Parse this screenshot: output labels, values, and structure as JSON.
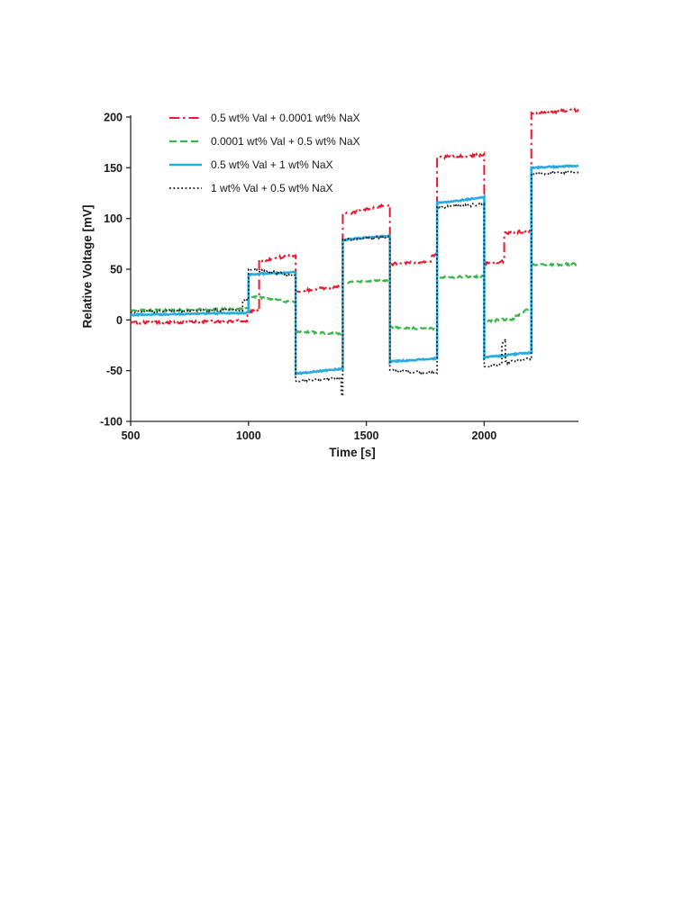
{
  "chart_data": {
    "type": "line",
    "title": "",
    "xlabel": "Time [s]",
    "ylabel": "Relative Voltage [mV]",
    "xlim": [
      500,
      2400
    ],
    "ylim": [
      -100,
      200
    ],
    "xticks": [
      500,
      1000,
      1500,
      2000
    ],
    "yticks": [
      -100,
      -50,
      0,
      50,
      100,
      150,
      200
    ],
    "grid": false,
    "legend_position": "top-left-inside",
    "axis_color": "#262626",
    "series": [
      {
        "name": "0.5 wt% Val + 0.0001 wt% NaX",
        "color": "#e8192c",
        "style": "dashdot",
        "width": 2,
        "noise": 1.4,
        "segments": [
          [
            500,
            995,
            -3,
            -1
          ],
          [
            995,
            1045,
            8,
            10
          ],
          [
            1045,
            1200,
            58,
            64
          ],
          [
            1200,
            1400,
            28,
            33
          ],
          [
            1400,
            1600,
            104,
            114
          ],
          [
            1600,
            1775,
            55,
            58
          ],
          [
            1775,
            1800,
            62,
            65
          ],
          [
            1800,
            2000,
            160,
            163
          ],
          [
            2000,
            2085,
            56,
            58
          ],
          [
            2085,
            2200,
            85,
            88
          ],
          [
            2200,
            2400,
            204,
            207
          ]
        ]
      },
      {
        "name": "0.0001 wt% Val + 0.5 wt% NaX",
        "color": "#3cb54a",
        "style": "dashed",
        "width": 2.2,
        "noise": 1.1,
        "segments": [
          [
            500,
            1000,
            9,
            11
          ],
          [
            1000,
            1200,
            24,
            17
          ],
          [
            1200,
            1400,
            -11,
            -14
          ],
          [
            1400,
            1600,
            37,
            39
          ],
          [
            1600,
            1800,
            -7,
            -9
          ],
          [
            1800,
            2000,
            42,
            43
          ],
          [
            2000,
            2130,
            -1,
            1
          ],
          [
            2130,
            2200,
            3,
            12
          ],
          [
            2200,
            2400,
            54,
            55
          ]
        ]
      },
      {
        "name": "0.5 wt% Val + 1 wt% NaX",
        "color": "#29abe2",
        "style": "solid",
        "width": 2.6,
        "noise": 0.7,
        "segments": [
          [
            500,
            1000,
            5,
            7
          ],
          [
            1000,
            1200,
            45,
            47
          ],
          [
            1200,
            1400,
            -53,
            -48
          ],
          [
            1400,
            1600,
            79,
            83
          ],
          [
            1600,
            1800,
            -41,
            -38
          ],
          [
            1800,
            2000,
            115,
            121
          ],
          [
            2000,
            2200,
            -37,
            -32
          ],
          [
            2200,
            2400,
            150,
            152
          ]
        ]
      },
      {
        "name": "1 wt% Val + 0.5 wt% NaX",
        "color": "#1a1a1a",
        "style": "dotted",
        "width": 1.7,
        "noise": 1.3,
        "segments": [
          [
            500,
            975,
            8,
            10
          ],
          [
            975,
            1000,
            18,
            20
          ],
          [
            1000,
            1200,
            50,
            44
          ],
          [
            1200,
            1393,
            -60,
            -57
          ],
          [
            1393,
            1400,
            -72,
            -75
          ],
          [
            1400,
            1600,
            79,
            82
          ],
          [
            1600,
            1800,
            -50,
            -52
          ],
          [
            1800,
            2000,
            111,
            114
          ],
          [
            2000,
            2075,
            -46,
            -44
          ],
          [
            2075,
            2090,
            -24,
            -20
          ],
          [
            2090,
            2200,
            -42,
            -38
          ],
          [
            2200,
            2400,
            144,
            146
          ]
        ]
      }
    ]
  }
}
